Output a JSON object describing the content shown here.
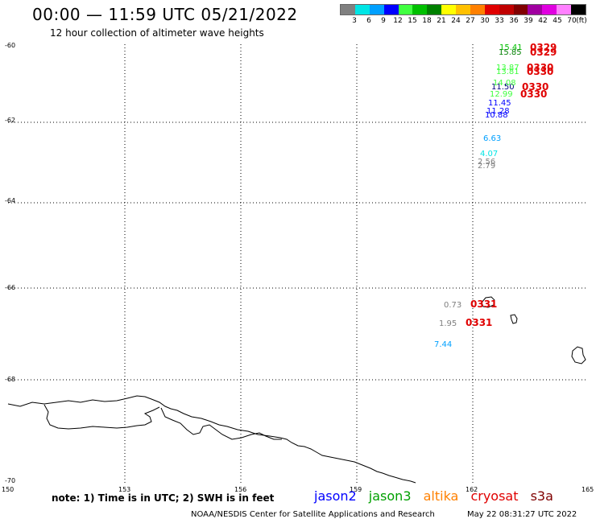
{
  "header": {
    "title": "00:00 — 11:59 UTC 05/21/2022",
    "subtitle": "12 hour collection of altimeter wave heights"
  },
  "legend": {
    "swatch_colors": [
      "#808080",
      "#00e5e5",
      "#00a0ff",
      "#0000ff",
      "#40ff40",
      "#00c000",
      "#008000",
      "#ffff00",
      "#ffc000",
      "#ff8000",
      "#e00000",
      "#c00000",
      "#800000",
      "#a000a0",
      "#e000e0",
      "#ff80ff",
      "#000000"
    ],
    "tick_labels": [
      "3",
      "6",
      "9",
      "12",
      "15",
      "18",
      "21",
      "24",
      "27",
      "30",
      "33",
      "36",
      "39",
      "42",
      "45",
      "70",
      "(ft)"
    ]
  },
  "map": {
    "lat_labels": [
      "-60",
      "-62",
      "-64",
      "-66",
      "-68",
      "-70"
    ],
    "lon_labels": [
      "150",
      "153",
      "156",
      "159",
      "162",
      "165"
    ],
    "observations": [
      {
        "value": "15.41",
        "color": "#00c000"
      },
      {
        "value": "15.85",
        "color": "#008000"
      },
      {
        "value": "13.87",
        "color": "#40ff40"
      },
      {
        "value": "13.81",
        "color": "#40ff40"
      },
      {
        "value": "11.50",
        "color": "#000080"
      },
      {
        "value": "14.08",
        "color": "#40ff40"
      },
      {
        "value": "12.99",
        "color": "#40ff40"
      },
      {
        "value": "11.45",
        "color": "#0000ff"
      },
      {
        "value": "11.28",
        "color": "#0000ff"
      },
      {
        "value": "10.88",
        "color": "#0000ff"
      },
      {
        "value": "6.63",
        "color": "#00a0ff"
      },
      {
        "value": "4.07",
        "color": "#00e5e5"
      },
      {
        "value": "2.56",
        "color": "#808080"
      },
      {
        "value": "2.79",
        "color": "#808080"
      },
      {
        "value": "0.73",
        "color": "#808080"
      },
      {
        "value": "1.95",
        "color": "#808080"
      },
      {
        "value": "7.44",
        "color": "#00a0ff"
      }
    ],
    "time_tags": [
      "0329",
      "0329",
      "0330",
      "0330",
      "0330",
      "0330",
      "0331",
      "0331"
    ]
  },
  "footer": {
    "note": "note: 1) Time is in UTC; 2) SWH is in feet",
    "satellites": [
      {
        "name": "jason2",
        "color": "#0000ff"
      },
      {
        "name": "jason3",
        "color": "#00a000"
      },
      {
        "name": "altika",
        "color": "#ff8000"
      },
      {
        "name": "cryosat",
        "color": "#e00000"
      },
      {
        "name": "s3a",
        "color": "#800000"
      }
    ],
    "credit": "NOAA/NESDIS Center for Satellite Applications and Research",
    "timestamp": "May 22 08:31:27 UTC 2022"
  }
}
